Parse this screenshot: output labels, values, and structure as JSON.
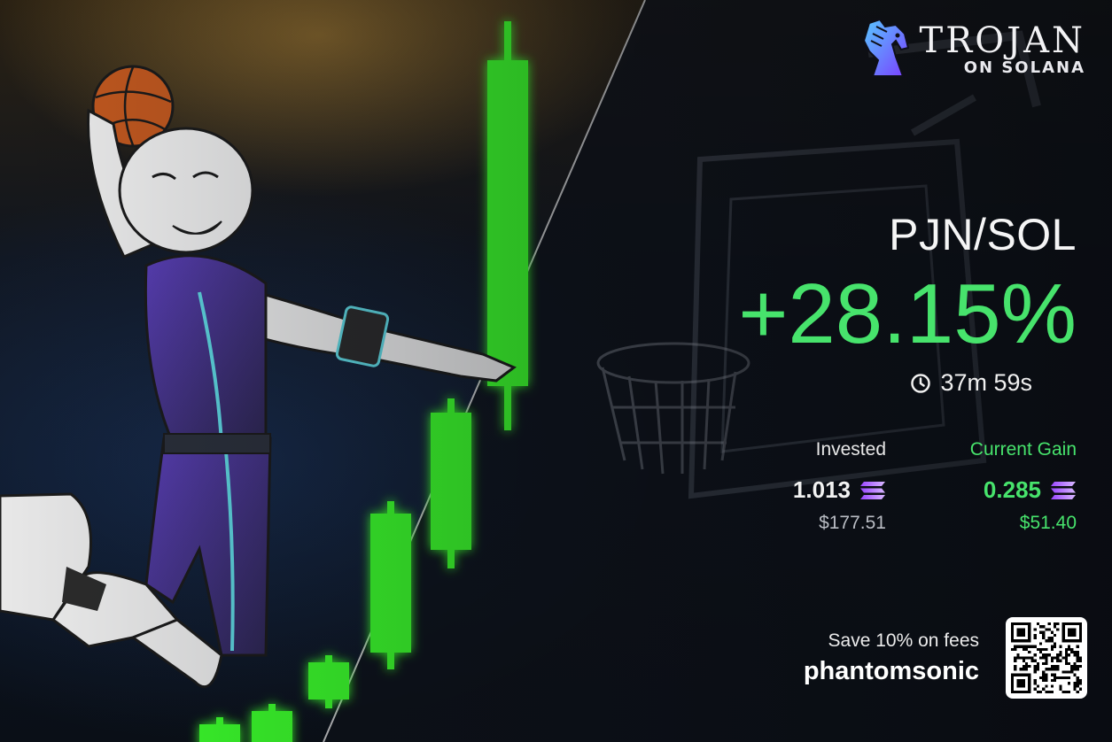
{
  "brand": {
    "title": "TROJAN",
    "subtitle": "ON SOLANA"
  },
  "trade": {
    "pair": "PJN/SOL",
    "change": "+28.15%",
    "duration": "37m 59s"
  },
  "invested": {
    "label": "Invested",
    "amount": "1.013",
    "usd": "$177.51"
  },
  "gain": {
    "label": "Current Gain",
    "amount": "0.285",
    "usd": "$51.40"
  },
  "referral": {
    "label": "Save 10% on fees",
    "code": "phantomsonic"
  },
  "icons": {
    "clock": "clock-icon",
    "solana": "solana-icon",
    "qr": "qr-code-icon",
    "logo": "trojan-horse-icon"
  },
  "colors": {
    "gain_green": "#47e36c",
    "candle_green": "#3aff2a",
    "logo_purple": "#6a4cff"
  }
}
